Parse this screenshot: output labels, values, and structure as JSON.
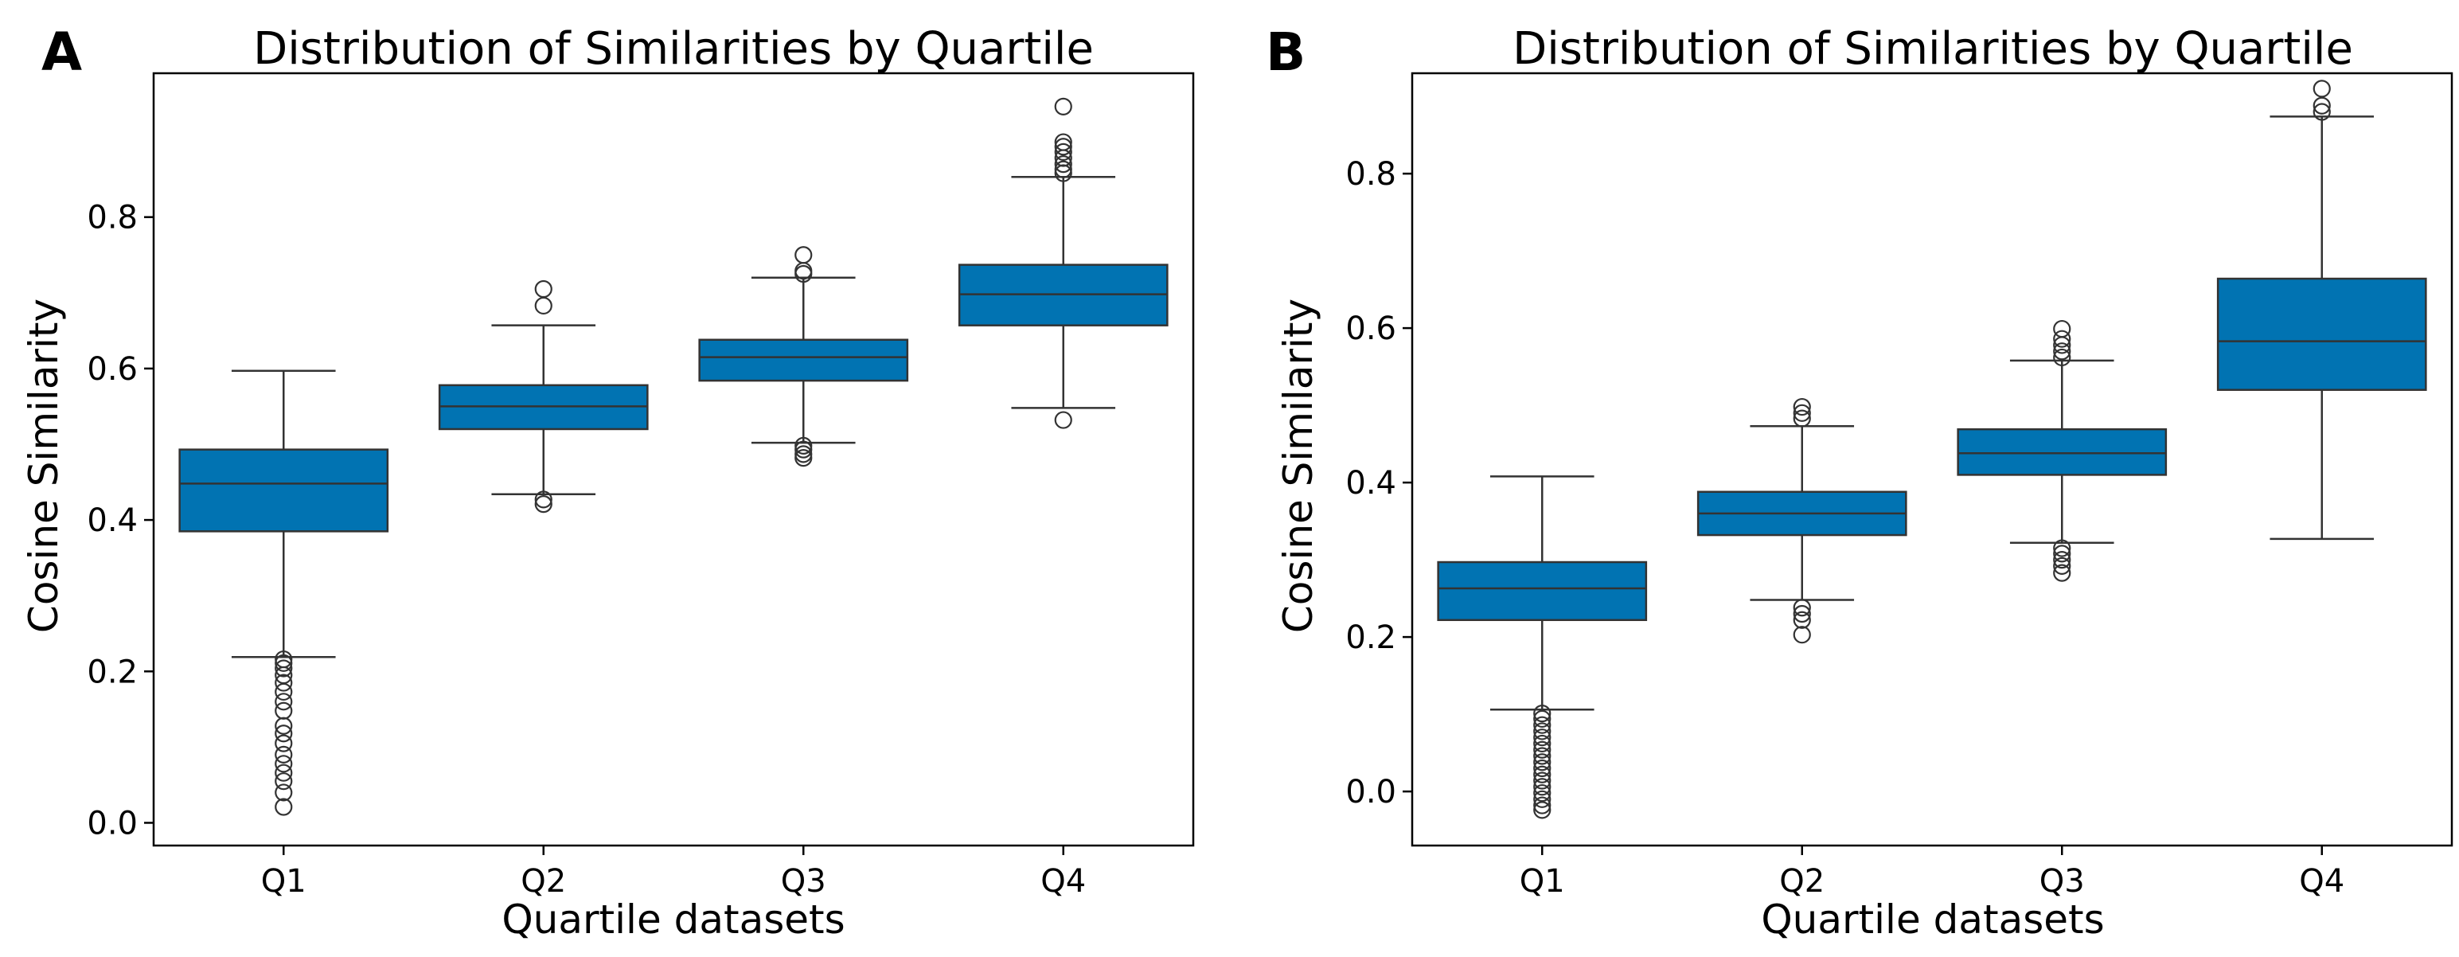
{
  "colors": {
    "box_fill": "#0173b2",
    "line": "#333333",
    "outlier_stroke": "#333333",
    "frame": "#000000"
  },
  "chart_data": [
    {
      "panel": "A",
      "type": "box",
      "title": "Distribution of Similarities by Quartile",
      "xlabel": "Quartile datasets",
      "ylabel": "Cosine Similarity",
      "ylim": [
        -0.03,
        0.99
      ],
      "yticks": [
        0.0,
        0.2,
        0.4,
        0.6,
        0.8
      ],
      "ytick_labels": [
        "0.0",
        "0.2",
        "0.4",
        "0.6",
        "0.8"
      ],
      "categories": [
        "Q1",
        "Q2",
        "Q3",
        "Q4"
      ],
      "boxes": [
        {
          "q1": 0.385,
          "median": 0.448,
          "q3": 0.493,
          "whisker_low": 0.219,
          "whisker_high": 0.597,
          "outliers": [
            0.021,
            0.04,
            0.055,
            0.066,
            0.078,
            0.09,
            0.105,
            0.118,
            0.128,
            0.148,
            0.16,
            0.173,
            0.185,
            0.195,
            0.204,
            0.211,
            0.216
          ]
        },
        {
          "q1": 0.52,
          "median": 0.55,
          "q3": 0.578,
          "whisker_low": 0.434,
          "whisker_high": 0.657,
          "outliers": [
            0.421,
            0.427,
            0.683,
            0.705
          ]
        },
        {
          "q1": 0.584,
          "median": 0.615,
          "q3": 0.638,
          "whisker_low": 0.502,
          "whisker_high": 0.72,
          "outliers": [
            0.482,
            0.487,
            0.493,
            0.498,
            0.725,
            0.729,
            0.75
          ]
        },
        {
          "q1": 0.657,
          "median": 0.698,
          "q3": 0.737,
          "whisker_low": 0.548,
          "whisker_high": 0.853,
          "outliers": [
            0.532,
            0.858,
            0.863,
            0.87,
            0.878,
            0.886,
            0.893,
            0.899,
            0.946
          ]
        }
      ]
    },
    {
      "panel": "B",
      "type": "box",
      "title": "Distribution of Similarities by Quartile",
      "xlabel": "Quartile datasets",
      "ylabel": "Cosine Similarity",
      "ylim": [
        -0.07,
        0.93
      ],
      "yticks": [
        0.0,
        0.2,
        0.4,
        0.6,
        0.8
      ],
      "ytick_labels": [
        "0.0",
        "0.2",
        "0.4",
        "0.6",
        "0.8"
      ],
      "categories": [
        "Q1",
        "Q2",
        "Q3",
        "Q4"
      ],
      "boxes": [
        {
          "q1": 0.222,
          "median": 0.263,
          "q3": 0.297,
          "whisker_low": 0.106,
          "whisker_high": 0.408,
          "outliers": [
            -0.024,
            -0.018,
            -0.01,
            -0.002,
            0.006,
            0.014,
            0.022,
            0.03,
            0.038,
            0.046,
            0.054,
            0.062,
            0.07,
            0.078,
            0.086,
            0.094,
            0.101
          ]
        },
        {
          "q1": 0.332,
          "median": 0.36,
          "q3": 0.388,
          "whisker_low": 0.248,
          "whisker_high": 0.473,
          "outliers": [
            0.203,
            0.222,
            0.23,
            0.238,
            0.483,
            0.49,
            0.498
          ]
        },
        {
          "q1": 0.41,
          "median": 0.438,
          "q3": 0.469,
          "whisker_low": 0.322,
          "whisker_high": 0.558,
          "outliers": [
            0.283,
            0.292,
            0.3,
            0.308,
            0.315,
            0.562,
            0.57,
            0.578,
            0.586,
            0.599
          ]
        },
        {
          "q1": 0.52,
          "median": 0.583,
          "q3": 0.664,
          "whisker_low": 0.327,
          "whisker_high": 0.874,
          "outliers": [
            0.88,
            0.888,
            0.91
          ]
        }
      ]
    }
  ]
}
